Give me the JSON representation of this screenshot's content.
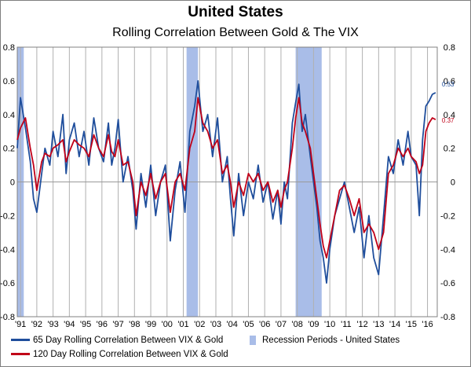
{
  "chart_data": {
    "type": "line",
    "title": "United States",
    "subtitle": "Rolling Correlation Between Gold & The VIX",
    "ylim": [
      -0.8,
      0.8
    ],
    "y_ticks": [
      "0.8",
      "0.6",
      "0.4",
      "0.2",
      "0",
      "-0.2",
      "-0.4",
      "-0.6",
      "-0.8"
    ],
    "x_range": [
      1990.8,
      2016.6
    ],
    "x_tick_labels": [
      "'91",
      "'92",
      "'93",
      "'94",
      "'95",
      "'96",
      "'97",
      "'98",
      "'99",
      "'00",
      "'01",
      "'02",
      "'03",
      "'04",
      "'05",
      "'06",
      "'07",
      "'08",
      "'09",
      "'10",
      "'11",
      "'12",
      "'13",
      "'14",
      "'15",
      "'16"
    ],
    "recessions": [
      [
        1990.8,
        1991.2
      ],
      [
        2001.2,
        2001.9
      ],
      [
        2007.9,
        2009.5
      ]
    ],
    "series": [
      {
        "name": "65 Day Rolling Correlation Between VIX & Gold",
        "color": "#1f4e9c",
        "end_label": "0.53",
        "points": [
          [
            1990.8,
            0.2
          ],
          [
            1991.0,
            0.5
          ],
          [
            1991.3,
            0.32
          ],
          [
            1991.6,
            0.12
          ],
          [
            1991.8,
            -0.1
          ],
          [
            1992.0,
            -0.18
          ],
          [
            1992.3,
            0.05
          ],
          [
            1992.5,
            0.2
          ],
          [
            1992.8,
            0.1
          ],
          [
            1993.0,
            0.3
          ],
          [
            1993.3,
            0.15
          ],
          [
            1993.6,
            0.4
          ],
          [
            1993.8,
            0.05
          ],
          [
            1994.0,
            0.25
          ],
          [
            1994.3,
            0.35
          ],
          [
            1994.6,
            0.15
          ],
          [
            1994.9,
            0.3
          ],
          [
            1995.2,
            0.1
          ],
          [
            1995.5,
            0.38
          ],
          [
            1995.8,
            0.2
          ],
          [
            1996.1,
            0.12
          ],
          [
            1996.4,
            0.35
          ],
          [
            1996.6,
            0.1
          ],
          [
            1996.8,
            0.2
          ],
          [
            1997.0,
            0.37
          ],
          [
            1997.3,
            0.0
          ],
          [
            1997.6,
            0.15
          ],
          [
            1997.9,
            -0.05
          ],
          [
            1998.1,
            -0.28
          ],
          [
            1998.4,
            0.05
          ],
          [
            1998.7,
            -0.15
          ],
          [
            1999.0,
            0.1
          ],
          [
            1999.3,
            -0.2
          ],
          [
            1999.6,
            0.0
          ],
          [
            1999.9,
            0.1
          ],
          [
            2000.2,
            -0.35
          ],
          [
            2000.5,
            -0.05
          ],
          [
            2000.8,
            0.12
          ],
          [
            2001.1,
            -0.18
          ],
          [
            2001.4,
            0.3
          ],
          [
            2001.7,
            0.45
          ],
          [
            2001.9,
            0.6
          ],
          [
            2002.2,
            0.3
          ],
          [
            2002.5,
            0.4
          ],
          [
            2002.8,
            0.15
          ],
          [
            2003.1,
            0.38
          ],
          [
            2003.4,
            0.0
          ],
          [
            2003.7,
            0.15
          ],
          [
            2003.9,
            -0.1
          ],
          [
            2004.1,
            -0.32
          ],
          [
            2004.4,
            0.05
          ],
          [
            2004.7,
            -0.2
          ],
          [
            2005.0,
            0.0
          ],
          [
            2005.3,
            -0.1
          ],
          [
            2005.6,
            0.1
          ],
          [
            2005.9,
            -0.12
          ],
          [
            2006.2,
            0.0
          ],
          [
            2006.5,
            -0.22
          ],
          [
            2006.8,
            -0.05
          ],
          [
            2007.0,
            -0.25
          ],
          [
            2007.2,
            0.0
          ],
          [
            2007.4,
            -0.1
          ],
          [
            2007.7,
            0.35
          ],
          [
            2007.9,
            0.47
          ],
          [
            2008.1,
            0.58
          ],
          [
            2008.3,
            0.3
          ],
          [
            2008.5,
            0.4
          ],
          [
            2008.8,
            0.15
          ],
          [
            2009.0,
            0.0
          ],
          [
            2009.2,
            -0.15
          ],
          [
            2009.4,
            -0.35
          ],
          [
            2009.6,
            -0.45
          ],
          [
            2009.8,
            -0.6
          ],
          [
            2010.0,
            -0.4
          ],
          [
            2010.3,
            -0.2
          ],
          [
            2010.6,
            -0.1
          ],
          [
            2010.9,
            0.0
          ],
          [
            2011.2,
            -0.15
          ],
          [
            2011.5,
            -0.3
          ],
          [
            2011.8,
            -0.15
          ],
          [
            2012.1,
            -0.45
          ],
          [
            2012.4,
            -0.2
          ],
          [
            2012.7,
            -0.45
          ],
          [
            2013.0,
            -0.55
          ],
          [
            2013.3,
            -0.2
          ],
          [
            2013.6,
            0.15
          ],
          [
            2013.9,
            0.05
          ],
          [
            2014.2,
            0.25
          ],
          [
            2014.5,
            0.1
          ],
          [
            2014.8,
            0.3
          ],
          [
            2015.0,
            0.15
          ],
          [
            2015.3,
            0.1
          ],
          [
            2015.5,
            -0.2
          ],
          [
            2015.7,
            0.25
          ],
          [
            2015.9,
            0.45
          ],
          [
            2016.1,
            0.48
          ],
          [
            2016.3,
            0.52
          ],
          [
            2016.5,
            0.53
          ]
        ]
      },
      {
        "name": "120 Day Rolling Correlation Between VIX & Gold",
        "color": "#c00018",
        "end_label": "0.37",
        "points": [
          [
            1990.8,
            0.25
          ],
          [
            1991.0,
            0.32
          ],
          [
            1991.3,
            0.38
          ],
          [
            1991.6,
            0.2
          ],
          [
            1991.8,
            0.1
          ],
          [
            1992.0,
            -0.05
          ],
          [
            1992.3,
            0.12
          ],
          [
            1992.5,
            0.17
          ],
          [
            1992.8,
            0.15
          ],
          [
            1993.0,
            0.2
          ],
          [
            1993.3,
            0.22
          ],
          [
            1993.6,
            0.25
          ],
          [
            1993.8,
            0.12
          ],
          [
            1994.0,
            0.18
          ],
          [
            1994.3,
            0.25
          ],
          [
            1994.6,
            0.22
          ],
          [
            1994.9,
            0.2
          ],
          [
            1995.2,
            0.15
          ],
          [
            1995.5,
            0.28
          ],
          [
            1995.8,
            0.2
          ],
          [
            1996.1,
            0.15
          ],
          [
            1996.4,
            0.28
          ],
          [
            1996.6,
            0.18
          ],
          [
            1996.8,
            0.15
          ],
          [
            1997.0,
            0.25
          ],
          [
            1997.3,
            0.1
          ],
          [
            1997.6,
            0.12
          ],
          [
            1997.9,
            0.0
          ],
          [
            1998.1,
            -0.2
          ],
          [
            1998.4,
            0.0
          ],
          [
            1998.7,
            -0.08
          ],
          [
            1999.0,
            0.05
          ],
          [
            1999.3,
            -0.1
          ],
          [
            1999.6,
            0.0
          ],
          [
            1999.9,
            0.05
          ],
          [
            2000.2,
            -0.18
          ],
          [
            2000.5,
            0.0
          ],
          [
            2000.8,
            0.05
          ],
          [
            2001.1,
            -0.05
          ],
          [
            2001.4,
            0.2
          ],
          [
            2001.7,
            0.3
          ],
          [
            2001.9,
            0.5
          ],
          [
            2002.2,
            0.35
          ],
          [
            2002.5,
            0.3
          ],
          [
            2002.8,
            0.2
          ],
          [
            2003.1,
            0.25
          ],
          [
            2003.4,
            0.05
          ],
          [
            2003.7,
            0.1
          ],
          [
            2003.9,
            0.0
          ],
          [
            2004.1,
            -0.15
          ],
          [
            2004.4,
            0.0
          ],
          [
            2004.7,
            -0.08
          ],
          [
            2005.0,
            0.05
          ],
          [
            2005.3,
            0.0
          ],
          [
            2005.6,
            0.05
          ],
          [
            2005.9,
            -0.05
          ],
          [
            2006.2,
            0.0
          ],
          [
            2006.5,
            -0.12
          ],
          [
            2006.8,
            -0.05
          ],
          [
            2007.0,
            -0.15
          ],
          [
            2007.2,
            -0.05
          ],
          [
            2007.4,
            0.0
          ],
          [
            2007.7,
            0.2
          ],
          [
            2007.9,
            0.38
          ],
          [
            2008.1,
            0.5
          ],
          [
            2008.3,
            0.35
          ],
          [
            2008.5,
            0.3
          ],
          [
            2008.8,
            0.2
          ],
          [
            2009.0,
            0.05
          ],
          [
            2009.2,
            -0.1
          ],
          [
            2009.4,
            -0.25
          ],
          [
            2009.6,
            -0.38
          ],
          [
            2009.8,
            -0.45
          ],
          [
            2010.0,
            -0.35
          ],
          [
            2010.3,
            -0.2
          ],
          [
            2010.6,
            -0.05
          ],
          [
            2010.9,
            -0.02
          ],
          [
            2011.2,
            -0.1
          ],
          [
            2011.5,
            -0.2
          ],
          [
            2011.8,
            -0.1
          ],
          [
            2012.1,
            -0.3
          ],
          [
            2012.4,
            -0.25
          ],
          [
            2012.7,
            -0.3
          ],
          [
            2013.0,
            -0.4
          ],
          [
            2013.3,
            -0.3
          ],
          [
            2013.6,
            0.05
          ],
          [
            2013.9,
            0.1
          ],
          [
            2014.2,
            0.2
          ],
          [
            2014.5,
            0.15
          ],
          [
            2014.8,
            0.2
          ],
          [
            2015.0,
            0.15
          ],
          [
            2015.3,
            0.12
          ],
          [
            2015.5,
            0.05
          ],
          [
            2015.7,
            0.1
          ],
          [
            2015.9,
            0.3
          ],
          [
            2016.1,
            0.35
          ],
          [
            2016.3,
            0.38
          ],
          [
            2016.5,
            0.37
          ]
        ]
      }
    ],
    "legend": {
      "series1": "65 Day Rolling Correlation Between VIX & Gold",
      "series2": "120 Day Rolling Correlation Between VIX & Gold",
      "recession": "Recession Periods - United States"
    },
    "colors": {
      "series1": "#1f4e9c",
      "series2": "#c00018",
      "recession": "#a9bde8",
      "grid": "#b0b0b0"
    }
  }
}
